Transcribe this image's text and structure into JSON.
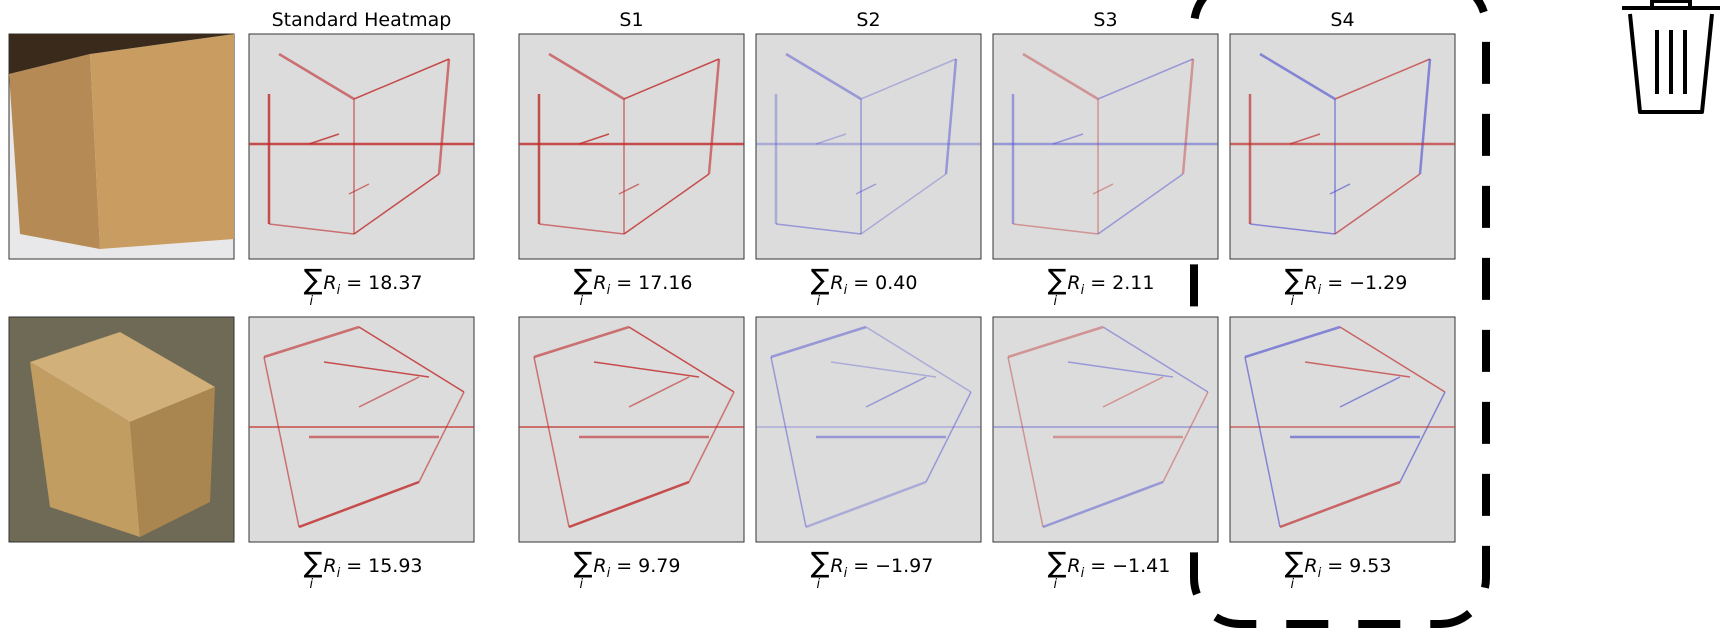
{
  "header": {
    "columns": [
      "Standard Heatmap",
      "S1",
      "S2",
      "S3",
      "S4"
    ]
  },
  "sum_label": {
    "sigma": "∑",
    "sigma_index": "i",
    "term": "R",
    "term_index": "i",
    "equals": "="
  },
  "rows": [
    {
      "sums": [
        "18.37",
        "17.16",
        "0.40",
        "2.11",
        "−1.29"
      ]
    },
    {
      "sums": [
        "15.93",
        "9.79",
        "−1.97",
        "−1.41",
        "9.53"
      ]
    }
  ]
}
